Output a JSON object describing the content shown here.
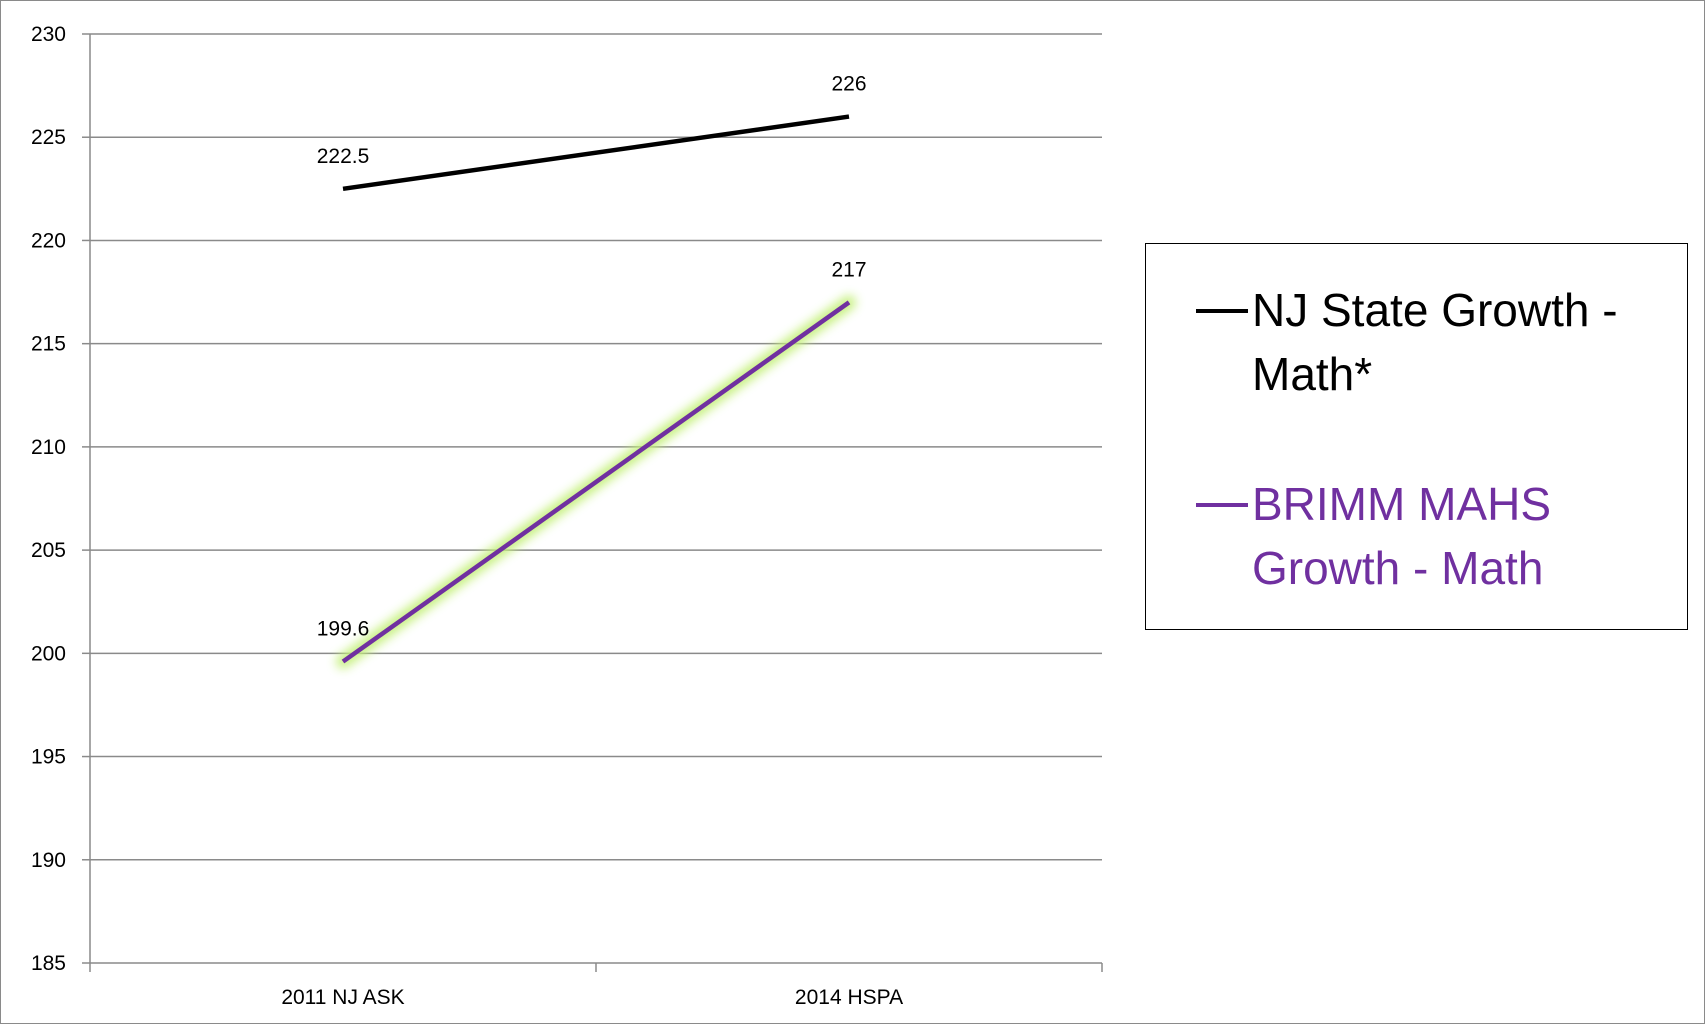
{
  "chart_data": {
    "type": "line",
    "categories": [
      "2011 NJ ASK",
      "2014 HSPA"
    ],
    "series": [
      {
        "name": "NJ State Growth - Math*",
        "values": [
          222.5,
          226
        ],
        "labels": [
          "222.5",
          "226"
        ],
        "color": "#000000"
      },
      {
        "name": "BRIMM MAHS Growth - Math",
        "values": [
          199.6,
          217
        ],
        "labels": [
          "199.6",
          "217"
        ],
        "color": "#7030A0",
        "glow": "#c4f07a"
      }
    ],
    "ylim": [
      185,
      230
    ],
    "yticks": [
      "185",
      "190",
      "195",
      "200",
      "205",
      "210",
      "215",
      "220",
      "225",
      "230"
    ],
    "grid": true,
    "legend": "right"
  }
}
